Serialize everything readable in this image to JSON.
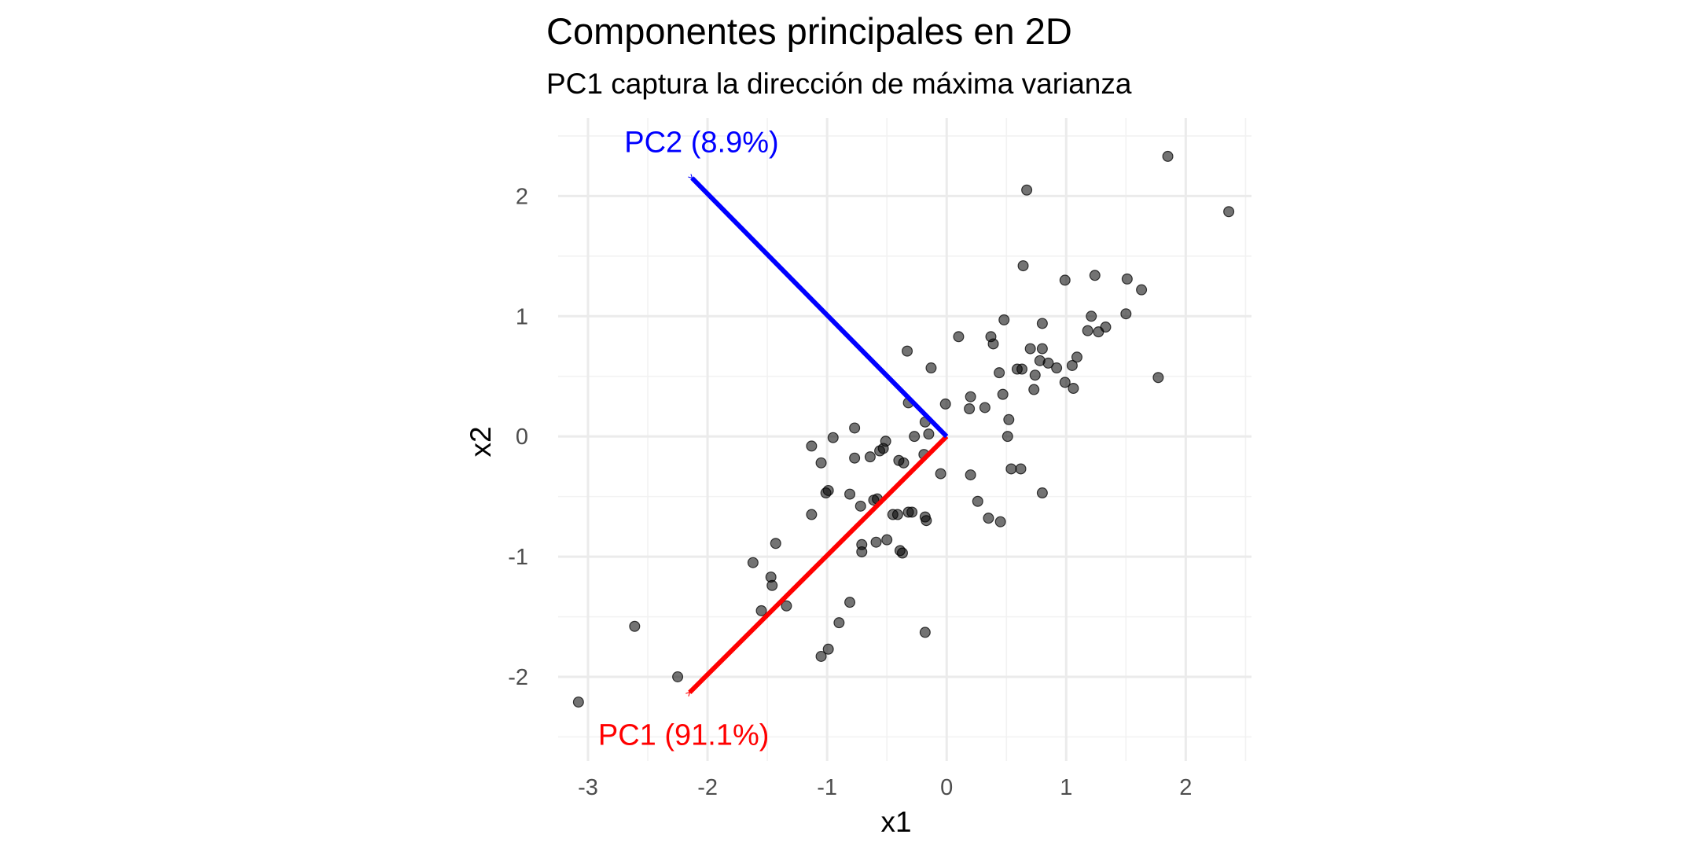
{
  "chart_data": {
    "type": "scatter",
    "title": "Componentes principales en 2D",
    "subtitle": "PC1 captura la dirección de máxima varianza",
    "xlabel": "x1",
    "ylabel": "x2",
    "xlim": [
      -3.25,
      2.55
    ],
    "ylim": [
      -2.7,
      2.65
    ],
    "x_ticks": [
      -3,
      -2,
      -1,
      0,
      1,
      2
    ],
    "y_ticks": [
      -2,
      -1,
      0,
      1,
      2
    ],
    "grid": true,
    "point_color": "#000000",
    "series": [
      {
        "points": [
          [
            1.85,
            2.33
          ],
          [
            0.67,
            2.05
          ],
          [
            2.36,
            1.87
          ],
          [
            0.64,
            1.42
          ],
          [
            0.99,
            1.3
          ],
          [
            1.24,
            1.34
          ],
          [
            1.51,
            1.31
          ],
          [
            1.63,
            1.22
          ],
          [
            1.21,
            1.0
          ],
          [
            1.5,
            1.02
          ],
          [
            0.48,
            0.97
          ],
          [
            0.8,
            0.94
          ],
          [
            1.33,
            0.91
          ],
          [
            1.18,
            0.88
          ],
          [
            1.27,
            0.87
          ],
          [
            0.1,
            0.83
          ],
          [
            0.37,
            0.83
          ],
          [
            0.39,
            0.77
          ],
          [
            0.7,
            0.73
          ],
          [
            0.8,
            0.73
          ],
          [
            -0.33,
            0.71
          ],
          [
            1.09,
            0.66
          ],
          [
            0.78,
            0.63
          ],
          [
            0.85,
            0.61
          ],
          [
            1.05,
            0.59
          ],
          [
            0.92,
            0.57
          ],
          [
            -0.13,
            0.57
          ],
          [
            0.59,
            0.56
          ],
          [
            0.63,
            0.56
          ],
          [
            0.44,
            0.53
          ],
          [
            0.74,
            0.51
          ],
          [
            1.77,
            0.49
          ],
          [
            0.99,
            0.45
          ],
          [
            1.06,
            0.4
          ],
          [
            0.73,
            0.39
          ],
          [
            0.47,
            0.35
          ],
          [
            0.2,
            0.33
          ],
          [
            -0.32,
            0.28
          ],
          [
            -0.01,
            0.27
          ],
          [
            0.19,
            0.23
          ],
          [
            0.32,
            0.24
          ],
          [
            0.52,
            0.14
          ],
          [
            -0.18,
            0.12
          ],
          [
            -0.77,
            0.07
          ],
          [
            -0.27,
            0.0
          ],
          [
            -0.15,
            0.02
          ],
          [
            0.51,
            0.0
          ],
          [
            -0.95,
            -0.01
          ],
          [
            -0.51,
            -0.04
          ],
          [
            -1.13,
            -0.08
          ],
          [
            -0.53,
            -0.1
          ],
          [
            -0.56,
            -0.12
          ],
          [
            -0.19,
            -0.15
          ],
          [
            -0.64,
            -0.17
          ],
          [
            -0.77,
            -0.18
          ],
          [
            -0.4,
            -0.2
          ],
          [
            -0.36,
            -0.22
          ],
          [
            -1.05,
            -0.22
          ],
          [
            0.54,
            -0.27
          ],
          [
            0.62,
            -0.27
          ],
          [
            -0.05,
            -0.31
          ],
          [
            0.2,
            -0.32
          ],
          [
            -0.99,
            -0.45
          ],
          [
            -0.81,
            -0.48
          ],
          [
            0.8,
            -0.47
          ],
          [
            -1.01,
            -0.47
          ],
          [
            -0.58,
            -0.52
          ],
          [
            -0.61,
            -0.53
          ],
          [
            0.26,
            -0.54
          ],
          [
            -0.72,
            -0.58
          ],
          [
            -1.13,
            -0.65
          ],
          [
            -0.41,
            -0.65
          ],
          [
            -0.29,
            -0.63
          ],
          [
            -0.32,
            -0.63
          ],
          [
            -0.45,
            -0.65
          ],
          [
            -0.18,
            -0.67
          ],
          [
            -0.17,
            -0.7
          ],
          [
            0.35,
            -0.68
          ],
          [
            0.45,
            -0.71
          ],
          [
            -1.43,
            -0.89
          ],
          [
            -0.71,
            -0.9
          ],
          [
            -0.59,
            -0.88
          ],
          [
            -0.5,
            -0.86
          ],
          [
            -0.71,
            -0.96
          ],
          [
            -0.39,
            -0.95
          ],
          [
            -0.37,
            -0.97
          ],
          [
            -1.62,
            -1.05
          ],
          [
            -1.47,
            -1.17
          ],
          [
            -1.46,
            -1.24
          ],
          [
            -0.81,
            -1.38
          ],
          [
            -1.34,
            -1.41
          ],
          [
            -1.55,
            -1.45
          ],
          [
            -0.9,
            -1.55
          ],
          [
            -2.61,
            -1.58
          ],
          [
            -0.18,
            -1.63
          ],
          [
            -0.99,
            -1.77
          ],
          [
            -1.05,
            -1.83
          ],
          [
            -2.25,
            -2.0
          ],
          [
            -3.08,
            -2.21
          ]
        ]
      }
    ],
    "annotations": [
      {
        "label": "PC1 (91.1%)",
        "from": [
          0,
          0
        ],
        "to": [
          -2.15,
          -2.13
        ],
        "color": "#ff0000",
        "label_at": [
          -2.2,
          -2.48
        ]
      },
      {
        "label": "PC2 (8.9%)",
        "from": [
          0,
          0
        ],
        "to": [
          -2.13,
          2.15
        ],
        "color": "#0000ff",
        "label_at": [
          -2.05,
          2.45
        ]
      }
    ]
  }
}
